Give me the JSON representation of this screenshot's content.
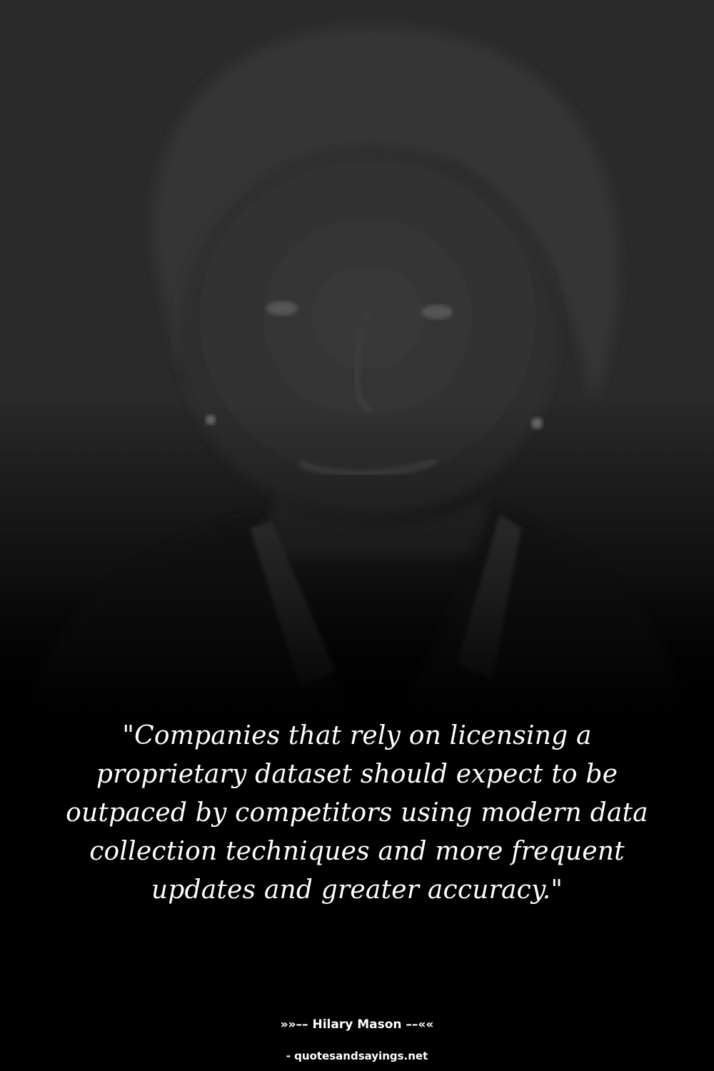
{
  "image": {
    "subject": "portrait-photo",
    "tone": "dark-grayscale"
  },
  "quote": {
    "text": "\"Companies that rely on licensing a proprietary dataset should expect to be outpaced by competitors using modern data collection techniques and more frequent updates and greater accuracy.\""
  },
  "attribution": {
    "author_line": "»»–– Hilary Mason ––««"
  },
  "footer": {
    "source": "- quotesandsayings.net"
  },
  "colors": {
    "background": "#000000",
    "text": "#ffffff"
  }
}
